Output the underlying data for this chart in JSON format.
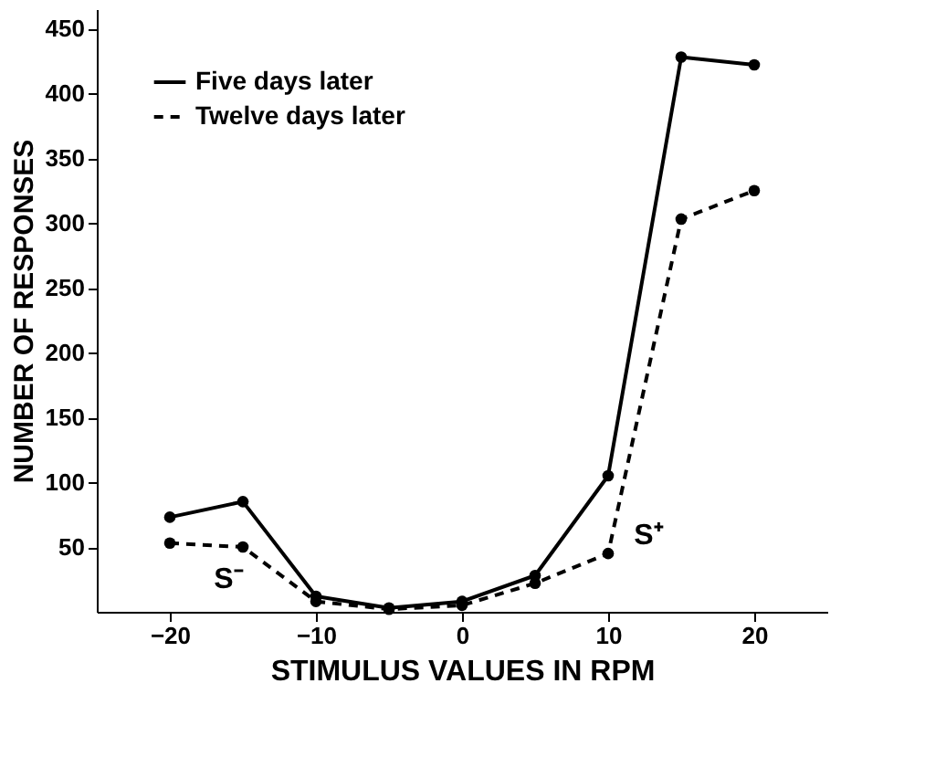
{
  "chart_data": {
    "type": "line",
    "xlabel": "STIMULUS VALUES IN RPM",
    "ylabel": "NUMBER OF RESPONSES",
    "x": [
      -20,
      -15,
      -10,
      -5,
      0,
      5,
      10,
      15,
      20
    ],
    "series": [
      {
        "name": "Five days later",
        "color": "#000000",
        "line_style": "solid",
        "values": [
          73,
          85,
          12,
          3,
          8,
          28,
          105,
          428,
          422
        ]
      },
      {
        "name": "Twelve days later",
        "color": "#000000",
        "line_style": "dashed",
        "values": [
          53,
          50,
          8,
          2,
          5,
          22,
          45,
          303,
          325
        ]
      }
    ],
    "xlim": [
      -25,
      25
    ],
    "xticks": [
      -20,
      -10,
      0,
      10,
      20
    ],
    "ylim": [
      0,
      465
    ],
    "yticks": [
      50,
      100,
      150,
      200,
      250,
      300,
      350,
      400,
      450
    ],
    "annotations": [
      "S⁻",
      "S⁺"
    ],
    "marker": "circle",
    "legend": "top left",
    "grid": false
  }
}
